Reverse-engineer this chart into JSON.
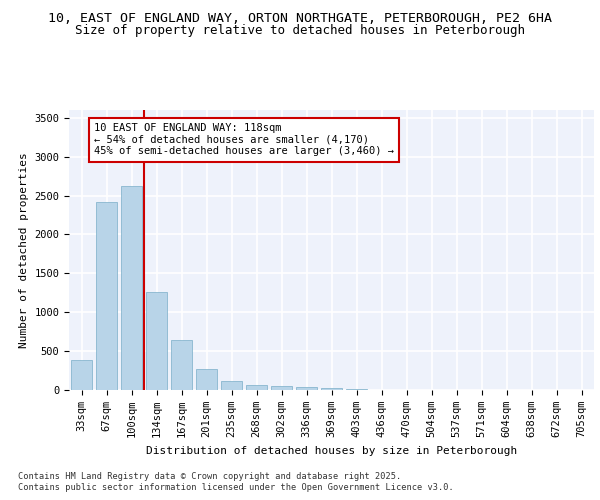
{
  "title1": "10, EAST OF ENGLAND WAY, ORTON NORTHGATE, PETERBOROUGH, PE2 6HA",
  "title2": "Size of property relative to detached houses in Peterborough",
  "xlabel": "Distribution of detached houses by size in Peterborough",
  "ylabel": "Number of detached properties",
  "categories": [
    "33sqm",
    "67sqm",
    "100sqm",
    "134sqm",
    "167sqm",
    "201sqm",
    "235sqm",
    "268sqm",
    "302sqm",
    "336sqm",
    "369sqm",
    "403sqm",
    "436sqm",
    "470sqm",
    "504sqm",
    "537sqm",
    "571sqm",
    "604sqm",
    "638sqm",
    "672sqm",
    "705sqm"
  ],
  "values": [
    390,
    2420,
    2620,
    1255,
    640,
    270,
    110,
    60,
    55,
    40,
    30,
    10,
    5,
    5,
    3,
    2,
    1,
    1,
    0,
    0,
    0
  ],
  "bar_color": "#b8d4e8",
  "bar_edge_color": "#7aaec8",
  "vline_color": "#cc0000",
  "annotation_box_text": "10 EAST OF ENGLAND WAY: 118sqm\n← 54% of detached houses are smaller (4,170)\n45% of semi-detached houses are larger (3,460) →",
  "ylim": [
    0,
    3600
  ],
  "yticks": [
    0,
    500,
    1000,
    1500,
    2000,
    2500,
    3000,
    3500
  ],
  "bg_color": "#eef2fb",
  "grid_color": "#ffffff",
  "footer_line1": "Contains HM Land Registry data © Crown copyright and database right 2025.",
  "footer_line2": "Contains public sector information licensed under the Open Government Licence v3.0.",
  "title_fontsize": 9.5,
  "subtitle_fontsize": 9,
  "axis_label_fontsize": 8,
  "tick_fontsize": 7.5,
  "annotation_fontsize": 7.5
}
